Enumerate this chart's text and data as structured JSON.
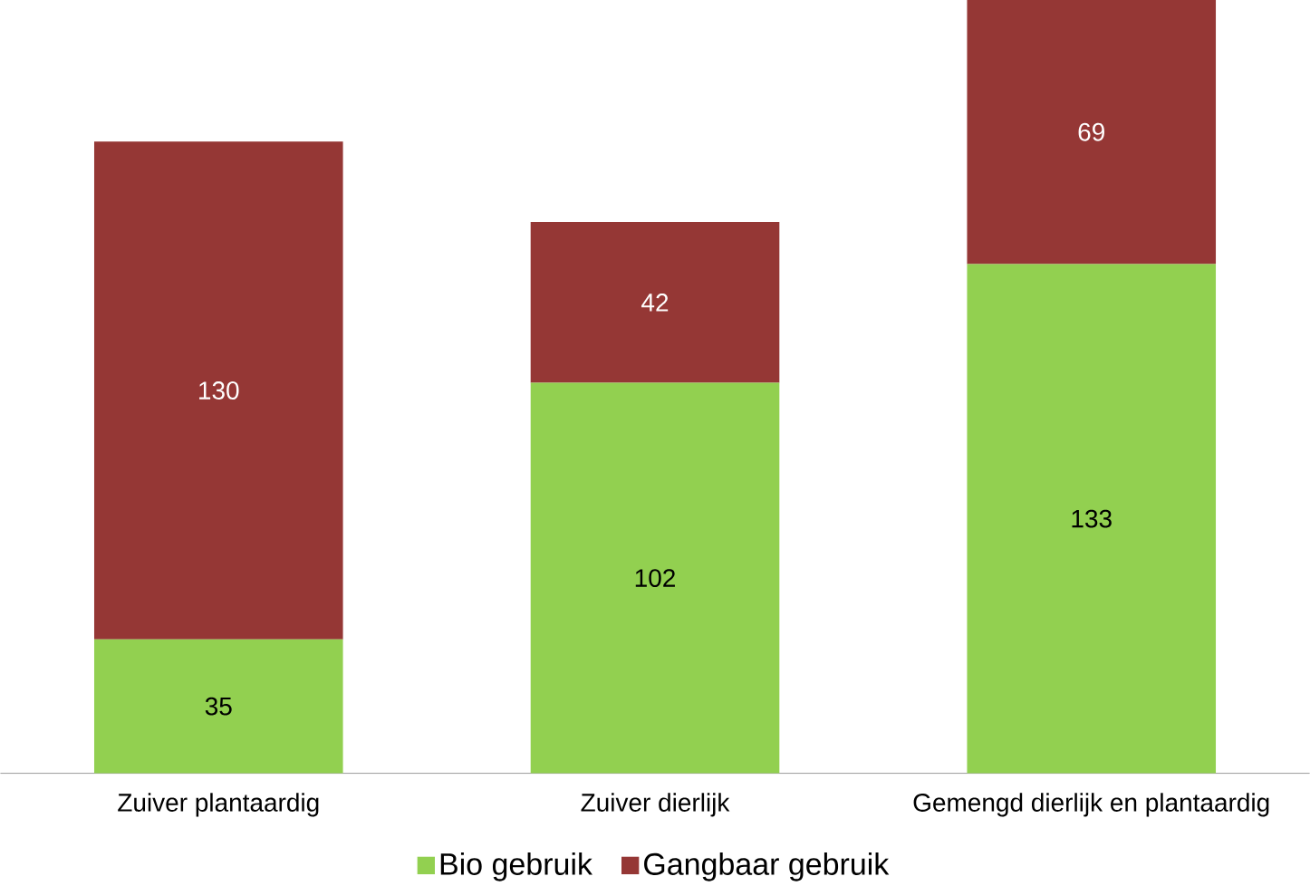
{
  "chart_data": {
    "type": "bar",
    "stacked": true,
    "data_labels": true,
    "legend": "bottom",
    "categories": [
      "Zuiver plantaardig",
      "Zuiver dierlijk",
      "Gemengd dierlijk en plantaardig"
    ],
    "series": [
      {
        "name": "Bio gebruik",
        "color": "#92d050",
        "values": [
          35,
          102,
          133
        ]
      },
      {
        "name": "Gangbaar gebruik",
        "color": "#953735",
        "values": [
          130,
          42,
          69
        ]
      }
    ]
  }
}
